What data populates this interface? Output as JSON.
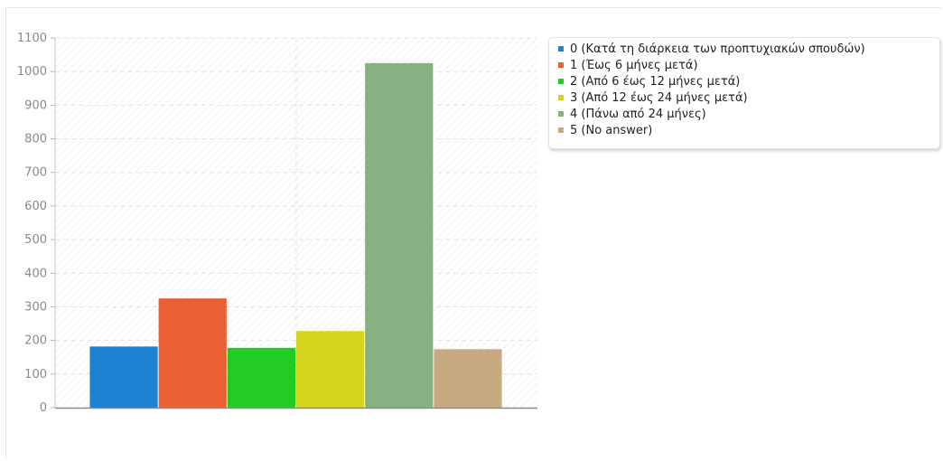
{
  "chart_data": {
    "type": "bar",
    "categories": [
      "0 (Κατά τη διάρκεια των προπτυχιακών σπουδών)",
      "1 (Έως 6 μήνες μετά)",
      "2 (Από 6 έως 12 μήνες μετά)",
      "3 (Από 12 έως 24 μήνες μετά)",
      "4 (Πάνω από 24 μήνες)",
      "5 (No answer)"
    ],
    "values": [
      182,
      325,
      178,
      228,
      1025,
      174
    ],
    "colors": [
      "#1a82d0",
      "#e96034",
      "#22cc22",
      "#d4d41c",
      "#86b081",
      "#c8aa82"
    ],
    "ylim": [
      0,
      1100
    ],
    "yticks": [
      0,
      100,
      200,
      300,
      400,
      500,
      600,
      700,
      800,
      900,
      1000,
      1100
    ],
    "grid": true,
    "legend_position": "right",
    "title": "",
    "xlabel": "",
    "ylabel": ""
  }
}
